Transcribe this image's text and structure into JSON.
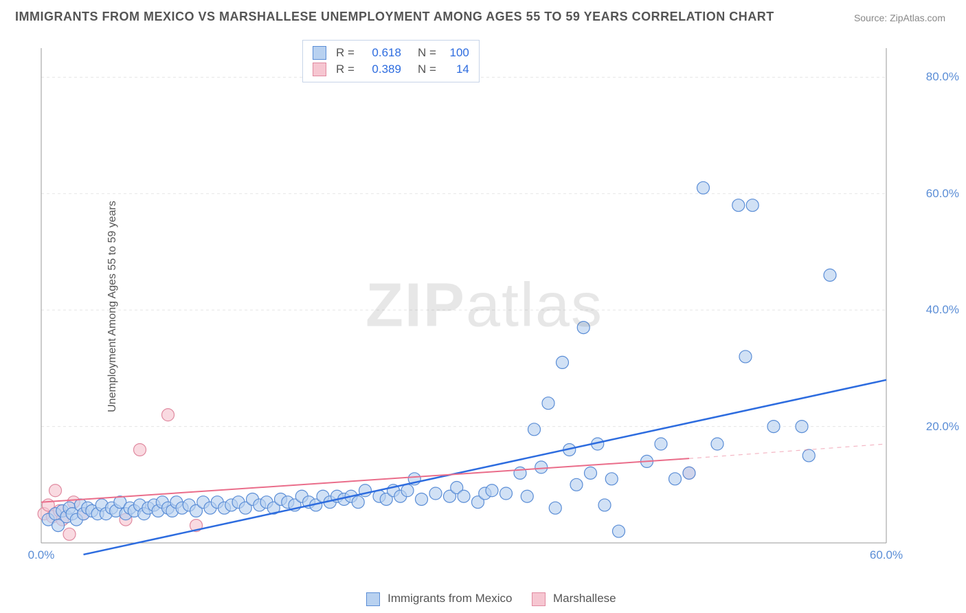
{
  "title": "IMMIGRANTS FROM MEXICO VS MARSHALLESE UNEMPLOYMENT AMONG AGES 55 TO 59 YEARS CORRELATION CHART",
  "source": "Source: ZipAtlas.com",
  "ylabel": "Unemployment Among Ages 55 to 59 years",
  "watermark_a": "ZIP",
  "watermark_b": "atlas",
  "chart": {
    "type": "scatter",
    "xlim": [
      0,
      60
    ],
    "ylim": [
      0,
      85
    ],
    "xtick_labels": [
      "0.0%",
      "60.0%"
    ],
    "xtick_vals": [
      0,
      60
    ],
    "ytick_labels": [
      "20.0%",
      "40.0%",
      "60.0%",
      "80.0%"
    ],
    "ytick_vals": [
      20,
      40,
      60,
      80
    ],
    "grid_color": "#e5e5e5",
    "axis_color": "#999",
    "background": "#ffffff",
    "marker_radius": 9,
    "marker_stroke_width": 1.2,
    "series": [
      {
        "name": "Immigrants from Mexico",
        "fill": "#b8d1f0",
        "stroke": "#5a8dd6",
        "fill_opacity": 0.65,
        "R": "0.618",
        "N": "100",
        "trend": {
          "x1": 3,
          "y1": -2,
          "x2": 60,
          "y2": 28,
          "stroke": "#2d6cdf",
          "width": 2.5,
          "dash": ""
        },
        "points": [
          [
            0.5,
            4
          ],
          [
            1,
            5
          ],
          [
            1.2,
            3
          ],
          [
            1.5,
            5.5
          ],
          [
            1.8,
            4.5
          ],
          [
            2,
            6
          ],
          [
            2.2,
            5
          ],
          [
            2.5,
            4
          ],
          [
            2.8,
            6.5
          ],
          [
            3,
            5
          ],
          [
            3.3,
            6
          ],
          [
            3.6,
            5.5
          ],
          [
            4,
            5
          ],
          [
            4.3,
            6.5
          ],
          [
            4.6,
            5
          ],
          [
            5,
            6
          ],
          [
            5.3,
            5.5
          ],
          [
            5.6,
            7
          ],
          [
            6,
            5
          ],
          [
            6.3,
            6
          ],
          [
            6.6,
            5.5
          ],
          [
            7,
            6.5
          ],
          [
            7.3,
            5
          ],
          [
            7.6,
            6
          ],
          [
            8,
            6.5
          ],
          [
            8.3,
            5.5
          ],
          [
            8.6,
            7
          ],
          [
            9,
            6
          ],
          [
            9.3,
            5.5
          ],
          [
            9.6,
            7
          ],
          [
            10,
            6
          ],
          [
            10.5,
            6.5
          ],
          [
            11,
            5.5
          ],
          [
            11.5,
            7
          ],
          [
            12,
            6
          ],
          [
            12.5,
            7
          ],
          [
            13,
            6
          ],
          [
            13.5,
            6.5
          ],
          [
            14,
            7
          ],
          [
            14.5,
            6
          ],
          [
            15,
            7.5
          ],
          [
            15.5,
            6.5
          ],
          [
            16,
            7
          ],
          [
            16.5,
            6
          ],
          [
            17,
            7.5
          ],
          [
            17.5,
            7
          ],
          [
            18,
            6.5
          ],
          [
            18.5,
            8
          ],
          [
            19,
            7
          ],
          [
            19.5,
            6.5
          ],
          [
            20,
            8
          ],
          [
            20.5,
            7
          ],
          [
            21,
            8
          ],
          [
            21.5,
            7.5
          ],
          [
            22,
            8
          ],
          [
            22.5,
            7
          ],
          [
            23,
            9
          ],
          [
            24,
            8
          ],
          [
            24.5,
            7.5
          ],
          [
            25,
            9
          ],
          [
            25.5,
            8
          ],
          [
            26,
            9
          ],
          [
            26.5,
            11
          ],
          [
            27,
            7.5
          ],
          [
            28,
            8.5
          ],
          [
            29,
            8
          ],
          [
            29.5,
            9.5
          ],
          [
            30,
            8
          ],
          [
            31,
            7
          ],
          [
            31.5,
            8.5
          ],
          [
            32,
            9
          ],
          [
            33,
            8.5
          ],
          [
            34,
            12
          ],
          [
            35,
            19.5
          ],
          [
            35.5,
            13
          ],
          [
            36,
            24
          ],
          [
            36.5,
            6
          ],
          [
            37,
            31
          ],
          [
            37.5,
            16
          ],
          [
            38,
            10
          ],
          [
            38.5,
            37
          ],
          [
            39,
            12
          ],
          [
            39.5,
            17
          ],
          [
            40,
            6.5
          ],
          [
            40.5,
            11
          ],
          [
            41,
            2
          ],
          [
            43,
            14
          ],
          [
            44,
            17
          ],
          [
            45,
            11
          ],
          [
            46,
            12
          ],
          [
            47,
            61
          ],
          [
            48,
            17
          ],
          [
            49.5,
            58
          ],
          [
            50.5,
            58
          ],
          [
            50,
            32
          ],
          [
            52,
            20
          ],
          [
            54,
            20
          ],
          [
            54.5,
            15
          ],
          [
            56,
            46
          ],
          [
            34.5,
            8
          ]
        ]
      },
      {
        "name": "Marshallese",
        "fill": "#f6c6d1",
        "stroke": "#e08aa0",
        "fill_opacity": 0.65,
        "R": "0.389",
        "N": "14",
        "trend": {
          "x1": 0,
          "y1": 7,
          "x2": 46,
          "y2": 14.5,
          "stroke": "#ea6d8a",
          "width": 2,
          "dash": "",
          "ext_x2": 60,
          "ext_y2": 17,
          "ext_dash": "6 6"
        },
        "points": [
          [
            0.2,
            5
          ],
          [
            0.5,
            6.5
          ],
          [
            0.8,
            4.5
          ],
          [
            1,
            9
          ],
          [
            1.3,
            5.5
          ],
          [
            1.5,
            4
          ],
          [
            2,
            1.5
          ],
          [
            2.3,
            7
          ],
          [
            3,
            5
          ],
          [
            6,
            4
          ],
          [
            7,
            16
          ],
          [
            9,
            22
          ],
          [
            11,
            3
          ],
          [
            46,
            12
          ]
        ]
      }
    ]
  },
  "legend": {
    "r_label": "R =",
    "n_label": "N ="
  }
}
